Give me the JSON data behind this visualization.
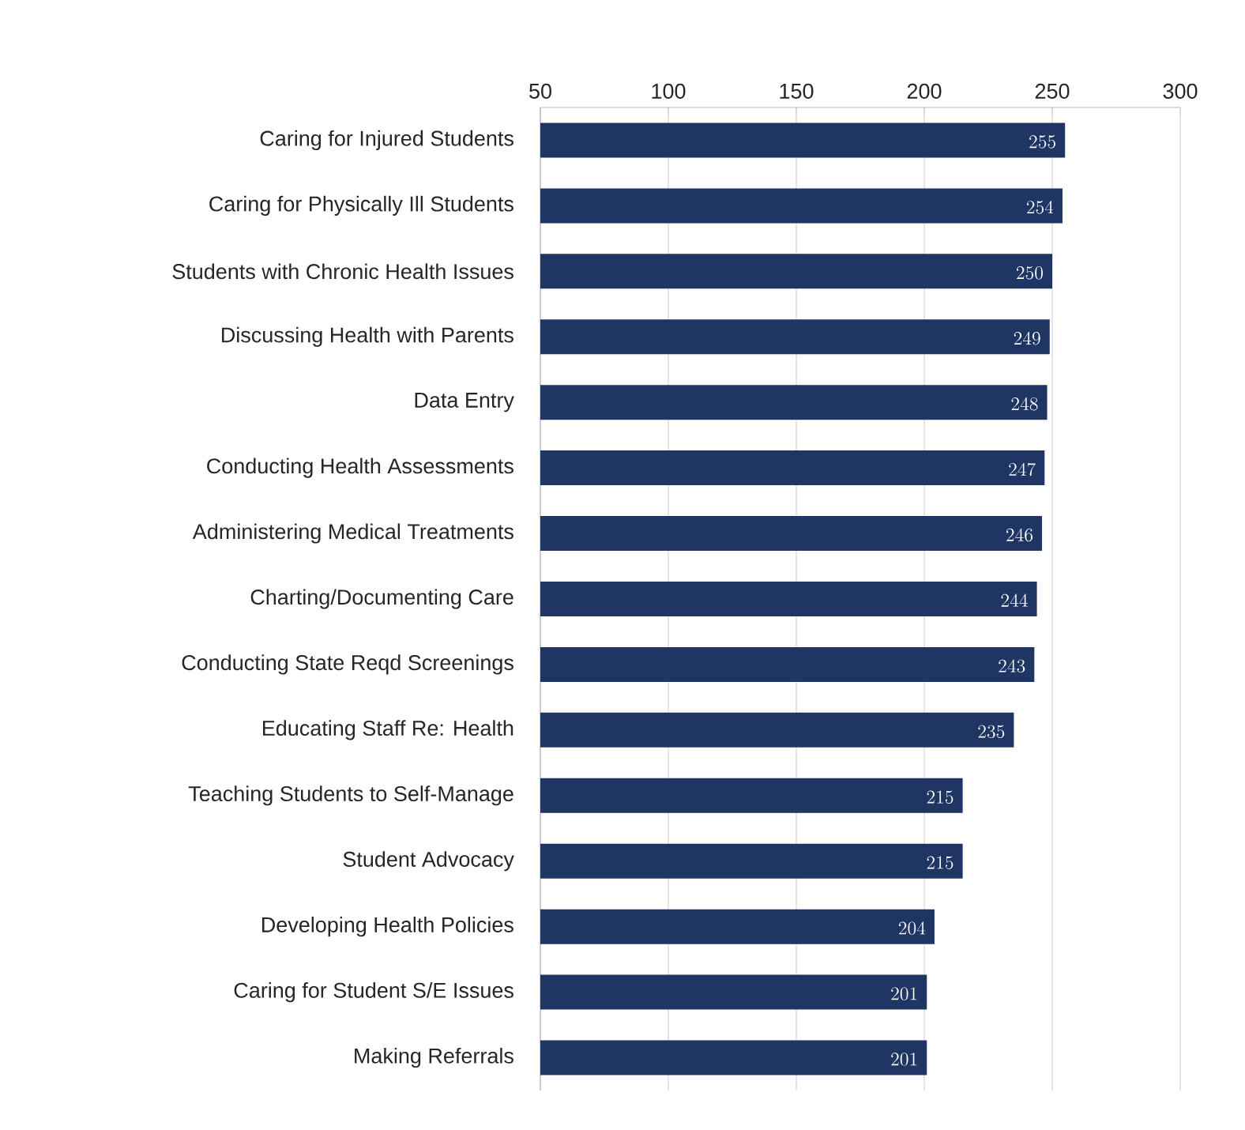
{
  "chart_data": {
    "type": "bar",
    "orientation": "horizontal",
    "categories": [
      "Caring for Injured Students",
      "Caring for Physically Ill Students",
      "Students with Chronic Health Issues",
      "Discussing Health with Parents",
      "Data Entry",
      "Conducting Health Assessments",
      "Administering Medical Treatments",
      "Charting/Documenting Care",
      "Conducting State Reqd Screenings",
      "Educating Staff Re: Health",
      "Teaching Students to Self-Manage",
      "Student Advocacy",
      "Developing Health Policies",
      "Caring for Student S/E Issues",
      "Making Referrals"
    ],
    "values": [
      255,
      254,
      250,
      249,
      248,
      247,
      246,
      244,
      243,
      235,
      215,
      215,
      204,
      201,
      201
    ],
    "color": "#1f3564",
    "xlim": [
      50,
      300
    ],
    "xticks": [
      50,
      100,
      150,
      200,
      250,
      300
    ],
    "grid": "x",
    "data_labels": true
  }
}
